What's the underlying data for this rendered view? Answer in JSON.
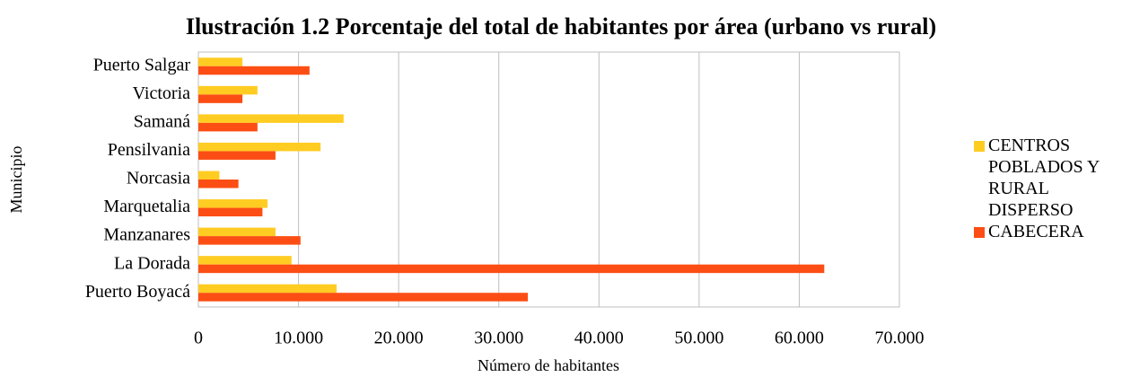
{
  "chart_data": {
    "type": "bar",
    "orientation": "horizontal",
    "title": "Ilustración 1.2 Porcentaje del total de habitantes por área (urbano vs rural)",
    "xlabel": "Número de habitantes",
    "ylabel": "Municipio",
    "categories": [
      "Puerto Boyacá",
      "La Dorada",
      "Manzanares",
      "Marquetalia",
      "Norcasia",
      "Pensilvania",
      "Samaná",
      "Victoria",
      "Puerto Salgar"
    ],
    "series": [
      {
        "name": "CENTROS POBLADOS Y RURAL DISPERSO",
        "color": "#ffcc22",
        "values": [
          13800,
          9300,
          7700,
          6900,
          2100,
          12200,
          14500,
          5900,
          4400
        ]
      },
      {
        "name": "CABECERA",
        "color": "#fc4e14",
        "values": [
          32900,
          62500,
          10200,
          6400,
          4000,
          7700,
          5900,
          4400,
          11100
        ]
      }
    ],
    "xlim": [
      0,
      70000
    ],
    "xticks": [
      0,
      {
        "value": 10000,
        "label": "10.000"
      },
      {
        "value": 20000,
        "label": "20.000"
      },
      {
        "value": 30000,
        "label": "30.000"
      },
      {
        "value": 40000,
        "label": "40.000"
      },
      {
        "value": 50000,
        "label": "50.000"
      },
      {
        "value": 60000,
        "label": "60.000"
      },
      {
        "value": 70000,
        "label": "70.000"
      }
    ],
    "grid": true,
    "legend": "right"
  }
}
